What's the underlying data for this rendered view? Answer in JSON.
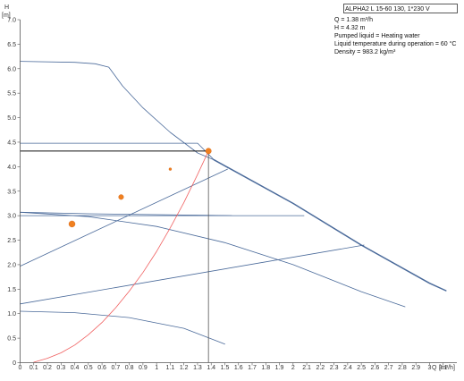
{
  "chart_data": {
    "type": "line",
    "ylabel": "H",
    "yunit": "[m]",
    "xlabel": "Q",
    "xunit": "[m³/h]",
    "xlim": [
      0,
      3.2
    ],
    "ylim": [
      0,
      7.0
    ],
    "grid": false,
    "x_ticks": [
      0,
      0.1,
      0.2,
      0.3,
      0.4,
      0.5,
      0.6,
      0.7,
      0.8,
      0.9,
      1.0,
      1.1,
      1.2,
      1.3,
      1.4,
      1.5,
      1.6,
      1.7,
      1.8,
      1.9,
      2.0,
      2.1,
      2.2,
      2.3,
      2.4,
      2.5,
      2.6,
      2.7,
      2.8,
      2.9,
      3.0,
      3.1
    ],
    "x_tick_labels": [
      "0",
      "0.1",
      "0.2",
      "0.3",
      "0.4",
      "0.5",
      "0.6",
      "0.7",
      "0.8",
      "0.9",
      "1",
      "1.1",
      "1.2",
      "1.3",
      "1.4",
      "1.5",
      "1.6",
      "1.7",
      "1.8",
      "1.9",
      "2",
      "2.1",
      "2.2",
      "2.3",
      "2.4",
      "2.5",
      "2.6",
      "2.7",
      "2.8",
      "2.9",
      "3",
      "3.1"
    ],
    "y_ticks": [
      0,
      0.5,
      1.0,
      1.5,
      2.0,
      2.5,
      3.0,
      3.5,
      4.0,
      4.5,
      5.0,
      5.5,
      6.0,
      6.5,
      7.0
    ],
    "y_tick_labels": [
      "0",
      "0.5",
      "1.0",
      "1.5",
      "2.0",
      "2.5",
      "3.0",
      "3.5",
      "4.0",
      "4.5",
      "5.0",
      "5.5",
      "6.0",
      "6.5",
      "7.0"
    ],
    "legend": {
      "placement": "top-right",
      "title": "ALPHA2 L 15-60 130, 1*230 V",
      "lines": [
        "Q = 1.38 m³/h",
        "H = 4.32 m",
        "Pumped liquid = Heating water",
        "Liquid temperature during operation = 60 °C",
        "Density = 983.2 kg/m³"
      ]
    },
    "series": [
      {
        "x": [
          0,
          0.4,
          0.55,
          0.65,
          0.75,
          0.9,
          1.1,
          1.3,
          1.42
        ],
        "y": [
          6.15,
          6.13,
          6.1,
          6.03,
          5.65,
          5.2,
          4.7,
          4.28,
          4.14
        ],
        "color": "#4a6a9a",
        "width": 0.8
      },
      {
        "x": [
          1.42,
          2.0,
          2.5,
          3.0,
          3.12
        ],
        "y": [
          4.14,
          3.25,
          2.4,
          1.62,
          1.47
        ],
        "color": "#4a6a9a",
        "width": 1.5
      },
      {
        "x": [
          0,
          1.3,
          1.42
        ],
        "y": [
          4.48,
          4.48,
          4.14
        ],
        "color": "#4a6a9a",
        "width": 0.8
      },
      {
        "x": [
          0,
          0.5,
          1.0,
          1.55
        ],
        "y": [
          3.07,
          3.04,
          3.02,
          3.0
        ],
        "color": "#4a6a9a",
        "width": 0.8
      },
      {
        "x": [
          0,
          2.08
        ],
        "y": [
          3.0,
          3.0
        ],
        "color": "#4a6a9a",
        "width": 0.8
      },
      {
        "x": [
          0,
          1.52
        ],
        "y": [
          1.97,
          3.95
        ],
        "color": "#4a6a9a",
        "width": 0.8
      },
      {
        "x": [
          0,
          0.5,
          1.0,
          1.5,
          2.0,
          2.5,
          2.82
        ],
        "y": [
          3.07,
          2.98,
          2.78,
          2.45,
          2.0,
          1.45,
          1.14
        ],
        "color": "#4a6a9a",
        "width": 0.8
      },
      {
        "x": [
          0,
          2.52
        ],
        "y": [
          1.2,
          2.4
        ],
        "color": "#4a6a9a",
        "width": 0.8
      },
      {
        "x": [
          0,
          0.4,
          0.8,
          1.2,
          1.5
        ],
        "y": [
          1.05,
          1.02,
          0.92,
          0.7,
          0.38
        ],
        "color": "#4a6a9a",
        "width": 0.8
      },
      {
        "x": [
          0.1,
          0.2,
          0.3,
          0.4,
          0.5,
          0.6,
          0.7,
          0.8,
          0.9,
          1.0,
          1.1,
          1.2,
          1.3,
          1.38
        ],
        "y": [
          0.01,
          0.09,
          0.2,
          0.36,
          0.57,
          0.82,
          1.12,
          1.46,
          1.84,
          2.27,
          2.75,
          3.27,
          3.84,
          4.32
        ],
        "color": "#f06060",
        "width": 0.8
      }
    ],
    "points": [
      {
        "x": 1.38,
        "y": 4.32,
        "r": 3.2,
        "color": "#f08020"
      },
      {
        "x": 1.1,
        "y": 3.95,
        "r": 1.5,
        "color": "#f08020"
      },
      {
        "x": 0.74,
        "y": 3.38,
        "r": 2.8,
        "color": "#f08020"
      },
      {
        "x": 0.38,
        "y": 2.83,
        "r": 3.5,
        "color": "#f08020"
      }
    ],
    "operating_point": {
      "x": 1.38,
      "y": 4.32
    }
  }
}
